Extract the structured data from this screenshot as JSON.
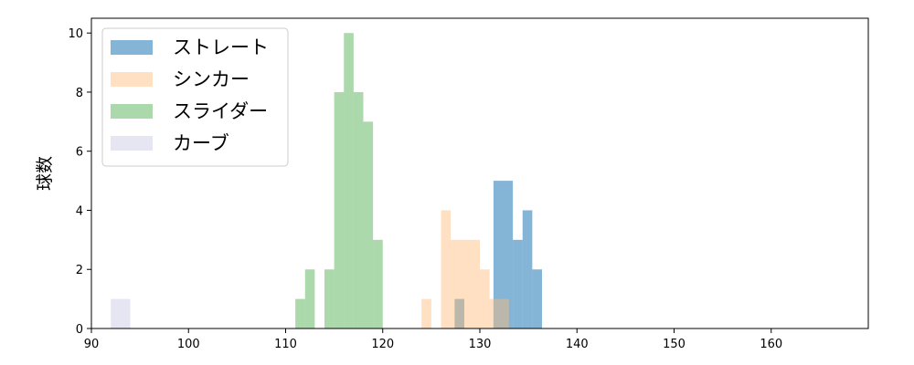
{
  "chart_data": {
    "type": "bar",
    "title": "",
    "xlabel": "",
    "ylabel": "球数",
    "xlim": [
      90,
      170
    ],
    "ylim": [
      0,
      10.5
    ],
    "xticks": [
      90,
      100,
      110,
      120,
      130,
      140,
      150,
      160
    ],
    "yticks": [
      0,
      2,
      4,
      6,
      8,
      10
    ],
    "grid": false,
    "legend_position": "top-left",
    "series": [
      {
        "name": "ストレート",
        "color": "#1f77b4",
        "opacity": 0.55,
        "bins": [
          {
            "x0": 127.4,
            "x1": 128.4,
            "count": 1
          },
          {
            "x0": 131.4,
            "x1": 132.4,
            "count": 5
          },
          {
            "x0": 132.4,
            "x1": 133.4,
            "count": 5
          },
          {
            "x0": 133.4,
            "x1": 134.4,
            "count": 3
          },
          {
            "x0": 134.4,
            "x1": 135.4,
            "count": 4
          },
          {
            "x0": 135.4,
            "x1": 136.4,
            "count": 2
          }
        ]
      },
      {
        "name": "シンカー",
        "color": "#ffbb78",
        "opacity": 0.45,
        "bins": [
          {
            "x0": 124.0,
            "x1": 125.0,
            "count": 1
          },
          {
            "x0": 126.0,
            "x1": 127.0,
            "count": 4
          },
          {
            "x0": 127.0,
            "x1": 128.0,
            "count": 3
          },
          {
            "x0": 128.0,
            "x1": 129.0,
            "count": 3
          },
          {
            "x0": 129.0,
            "x1": 130.0,
            "count": 3
          },
          {
            "x0": 130.0,
            "x1": 131.0,
            "count": 2
          },
          {
            "x0": 131.0,
            "x1": 132.0,
            "count": 1
          },
          {
            "x0": 132.0,
            "x1": 133.0,
            "count": 1
          }
        ]
      },
      {
        "name": "スライダー",
        "color": "#2ca02c",
        "opacity": 0.4,
        "bins": [
          {
            "x0": 111.0,
            "x1": 112.0,
            "count": 1
          },
          {
            "x0": 112.0,
            "x1": 113.0,
            "count": 2
          },
          {
            "x0": 114.0,
            "x1": 115.0,
            "count": 2
          },
          {
            "x0": 115.0,
            "x1": 116.0,
            "count": 8
          },
          {
            "x0": 116.0,
            "x1": 117.0,
            "count": 10
          },
          {
            "x0": 117.0,
            "x1": 118.0,
            "count": 8
          },
          {
            "x0": 118.0,
            "x1": 119.0,
            "count": 7
          },
          {
            "x0": 119.0,
            "x1": 120.0,
            "count": 3
          }
        ]
      },
      {
        "name": "カーブ",
        "color": "#c5c8e2",
        "opacity": 0.45,
        "bins": [
          {
            "x0": 92.0,
            "x1": 94.0,
            "count": 1
          }
        ]
      }
    ]
  }
}
